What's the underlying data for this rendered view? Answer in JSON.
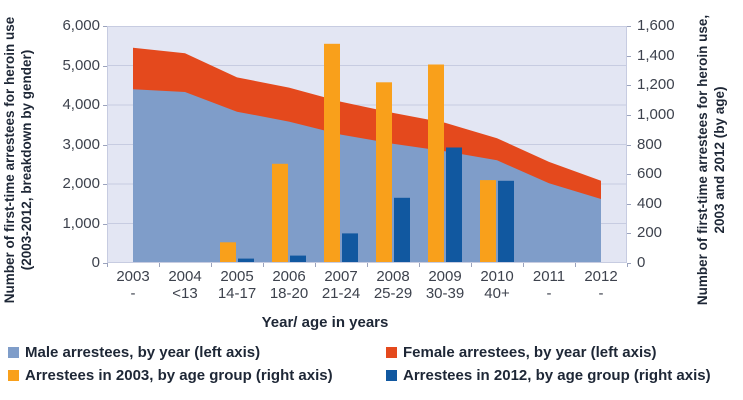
{
  "chart_data": {
    "type": "combo: stacked area (left axis) + grouped bars (right axis)",
    "categories": [
      {
        "year": "2003",
        "age": "-"
      },
      {
        "year": "2004",
        "age": "<13"
      },
      {
        "year": "2005",
        "age": "14-17"
      },
      {
        "year": "2006",
        "age": "18-20"
      },
      {
        "year": "2007",
        "age": "21-24"
      },
      {
        "year": "2008",
        "age": "25-29"
      },
      {
        "year": "2009",
        "age": "30-39"
      },
      {
        "year": "2010",
        "age": "40+"
      },
      {
        "year": "2011",
        "age": "-"
      },
      {
        "year": "2012",
        "age": "-"
      }
    ],
    "area_series": [
      {
        "name": "Male arrestees, by year (left axis)",
        "axis": "left",
        "color": "#7f9dc9",
        "values": [
          4400,
          4330,
          3830,
          3580,
          3250,
          3020,
          2830,
          2600,
          2020,
          1620
        ]
      },
      {
        "name": "Female arrestees, by year (left axis)",
        "axis": "left",
        "color": "#e4491d",
        "values": [
          1050,
          980,
          870,
          860,
          830,
          780,
          720,
          560,
          540,
          460
        ]
      }
    ],
    "bar_series": [
      {
        "name": "Arrestees in 2003, by age group (right axis)",
        "axis": "right",
        "color": "#f9a01b",
        "values": [
          null,
          0,
          140,
          670,
          1480,
          1220,
          1340,
          560,
          null,
          null
        ]
      },
      {
        "name": "Arrestees in 2012, by age group (right axis)",
        "axis": "right",
        "color": "#1158a0",
        "values": [
          null,
          0,
          30,
          50,
          200,
          440,
          780,
          555,
          null,
          null
        ]
      }
    ],
    "left_axis": {
      "title_line1": "Number of first-time arrestees for heroin use",
      "title_line2": "(2003-2012, breakdown by gender)",
      "min": 0,
      "max": 6000,
      "step": 1000,
      "tick_labels": [
        "6,000",
        "5,000",
        "4,000",
        "3,000",
        "2,000",
        "1,000",
        "0"
      ]
    },
    "right_axis": {
      "title_line1": "Number of first-time arrestees  for heroin use,",
      "title_line2": "2003 and 2012 (by age)",
      "min": 0,
      "max": 1600,
      "step": 200,
      "tick_labels": [
        "1,600",
        "1,400",
        "1,200",
        "1,000",
        "800",
        "600",
        "400",
        "200",
        "0"
      ]
    },
    "x_axis": {
      "title": "Year/ age in years"
    },
    "legend": [
      {
        "label": "Male arrestees, by year (left axis)",
        "color": "#7f9dc9"
      },
      {
        "label": "Female arrestees, by year (left axis)",
        "color": "#e4491d"
      },
      {
        "label": "Arrestees in 2003, by age group (right axis)",
        "color": "#f9a01b"
      },
      {
        "label": "Arrestees in 2012, by age group (right axis)",
        "color": "#1158a0"
      }
    ],
    "colors": {
      "plot_background": "#e3e6f3",
      "gridline": "#c7cce1",
      "tick": "#9ba3bd",
      "text_dark": "#1e2736",
      "text_tick": "#3d424d"
    },
    "grid": "horizontal gridlines on",
    "legend_position": "bottom, two columns"
  }
}
